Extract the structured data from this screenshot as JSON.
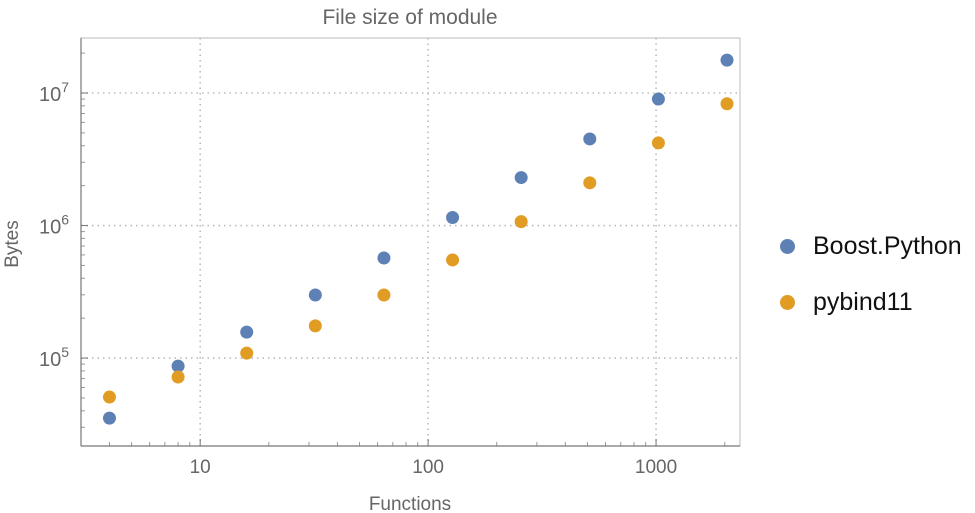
{
  "chart_data": {
    "type": "scatter",
    "title": "File size of module",
    "xlabel": "Functions",
    "ylabel": "Bytes",
    "xscale": "log",
    "yscale": "log",
    "xlim": [
      3,
      2335
    ],
    "ylim": [
      21700,
      26000000
    ],
    "x_ticks": [
      {
        "value": 10,
        "label": "10"
      },
      {
        "value": 100,
        "label": "100"
      },
      {
        "value": 1000,
        "label": "1000"
      }
    ],
    "y_ticks": [
      {
        "value": 100000,
        "exp": "5"
      },
      {
        "value": 1000000,
        "exp": "6"
      },
      {
        "value": 10000000,
        "exp": "7"
      }
    ],
    "y_tick_base": "10",
    "grid": true,
    "legend_position": "right",
    "x": [
      4,
      8,
      16,
      32,
      64,
      128,
      256,
      512,
      1024,
      2048
    ],
    "series": [
      {
        "name": "Boost.Python",
        "color": "#5e81b5",
        "values": [
          35200,
          87000,
          157000,
          299000,
          569000,
          1150000,
          2300000,
          4500000,
          9000000,
          17700000
        ]
      },
      {
        "name": "pybind11",
        "color": "#e19c24",
        "values": [
          50800,
          72000,
          109000,
          175000,
          299000,
          550000,
          1070000,
          2100000,
          4200000,
          8300000
        ]
      }
    ]
  }
}
